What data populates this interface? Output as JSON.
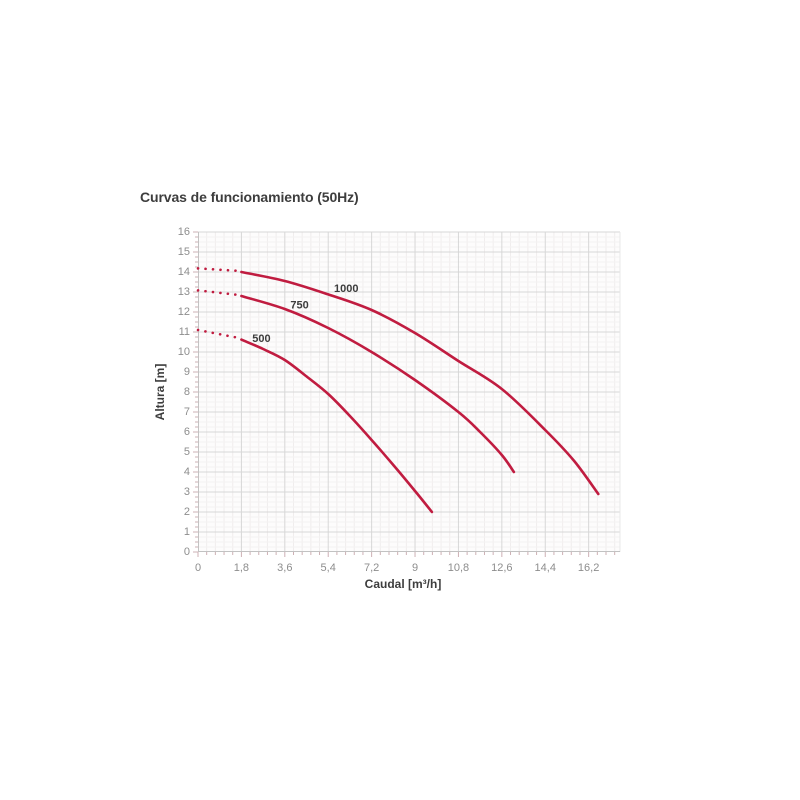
{
  "chart_data": {
    "type": "line",
    "title": "Curvas de funcionamiento (50Hz)",
    "xlabel": "Caudal [m³/h]",
    "ylabel": "Altura [m]",
    "xlim": [
      0,
      17.5
    ],
    "ylim": [
      0,
      16
    ],
    "grid": {
      "major": true,
      "minor": true
    },
    "legend_position": "inline-labels",
    "x_tick_values": [
      0,
      1.8,
      3.6,
      5.4,
      7.2,
      9,
      10.8,
      12.6,
      14.4,
      16.2
    ],
    "x_tick_labels": [
      "0",
      "1,8",
      "3,6",
      "5,4",
      "7,2",
      "9",
      "10,8",
      "12,6",
      "14,4",
      "16,2"
    ],
    "y_tick_values": [
      0,
      1,
      2,
      3,
      4,
      5,
      6,
      7,
      8,
      9,
      10,
      11,
      12,
      13,
      14,
      15,
      16
    ],
    "y_tick_labels": [
      "0",
      "1",
      "2",
      "3",
      "4",
      "5",
      "6",
      "7",
      "8",
      "9",
      "10",
      "11",
      "12",
      "13",
      "14",
      "15",
      "16"
    ],
    "series": [
      {
        "name": "500",
        "label_anchor": [
          2.63,
          10.65
        ],
        "dotted_lead_in": [
          [
            0,
            11.1
          ],
          [
            1.62,
            10.72
          ]
        ],
        "points": [
          [
            1.8,
            10.62
          ],
          [
            2.7,
            10.15
          ],
          [
            3.6,
            9.6
          ],
          [
            4.5,
            8.78
          ],
          [
            5.4,
            7.9
          ],
          [
            6.3,
            6.8
          ],
          [
            7.2,
            5.6
          ],
          [
            8.1,
            4.35
          ],
          [
            9.0,
            3.05
          ],
          [
            9.7,
            2.0
          ]
        ]
      },
      {
        "name": "750",
        "label_anchor": [
          4.21,
          12.33
        ],
        "dotted_lead_in": [
          [
            0,
            13.08
          ],
          [
            1.62,
            12.86
          ]
        ],
        "points": [
          [
            1.8,
            12.8
          ],
          [
            3.6,
            12.15
          ],
          [
            5.4,
            11.2
          ],
          [
            7.2,
            10.0
          ],
          [
            9.0,
            8.6
          ],
          [
            10.8,
            7.0
          ],
          [
            11.7,
            6.0
          ],
          [
            12.6,
            4.85
          ],
          [
            13.1,
            4.0
          ]
        ]
      },
      {
        "name": "1000",
        "label_anchor": [
          6.15,
          13.14
        ],
        "dotted_lead_in": [
          [
            0,
            14.18
          ],
          [
            1.62,
            14.06
          ]
        ],
        "points": [
          [
            1.8,
            14.0
          ],
          [
            3.6,
            13.55
          ],
          [
            5.4,
            12.88
          ],
          [
            7.2,
            12.1
          ],
          [
            9.0,
            10.95
          ],
          [
            10.8,
            9.55
          ],
          [
            12.6,
            8.15
          ],
          [
            14.4,
            6.1
          ],
          [
            15.6,
            4.55
          ],
          [
            16.6,
            2.9
          ]
        ]
      }
    ],
    "colors": {
      "curve": "#c01c40",
      "grid_major": "#d7d7d7",
      "grid_minor_v": "#f0eded",
      "grid_minor_h": "#f4f2f2",
      "axis_line": "#c2c2c2",
      "plot_right_edge": "#e8e8e8",
      "tick_mark": "#cdb0b4",
      "title_text": "#3d3d3d",
      "tick_text": "#8d8d8d"
    }
  }
}
